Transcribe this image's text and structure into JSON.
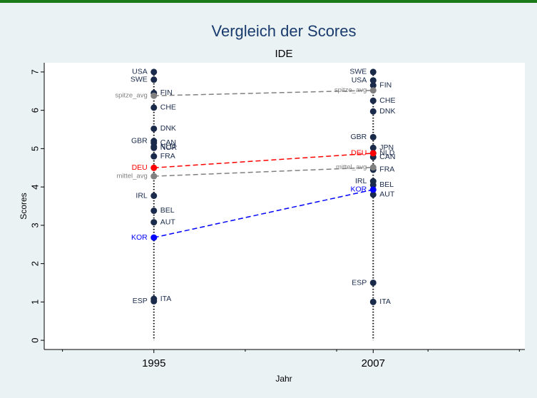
{
  "chart_data": {
    "type": "dot_comparison",
    "title": "Vergleich der Scores",
    "subtitle": "IDE",
    "x_label": "Jahr",
    "y_label": "Scores",
    "x": [
      1995,
      2007
    ],
    "xlim": [
      1989,
      2015.3
    ],
    "xticks": [
      1995,
      2007
    ],
    "xminorticks": [
      1990,
      2000,
      2005,
      2010,
      2015
    ],
    "ylim": [
      -0.24,
      7.24
    ],
    "yticks": [
      0,
      1,
      2,
      3,
      4,
      5,
      6,
      7
    ],
    "grid": false,
    "series": [
      {
        "name": "USA",
        "color": "#1a2a4a",
        "values": [
          7.0,
          6.78
        ],
        "label_positions": [
          "left",
          "left"
        ],
        "connect": false
      },
      {
        "name": "SWE",
        "color": "#1a2a4a",
        "values": [
          6.8,
          7.0
        ],
        "label_positions": [
          "left",
          "left"
        ],
        "connect": false
      },
      {
        "name": "FIN",
        "color": "#1a2a4a",
        "values": [
          6.45,
          6.65
        ],
        "label_positions": [
          "right",
          "right"
        ],
        "connect": false
      },
      {
        "name": "spitze_avg",
        "color": "#808080",
        "values": [
          6.38,
          6.52
        ],
        "label_positions": [
          "left",
          "left"
        ],
        "connect": true
      },
      {
        "name": "CHE",
        "color": "#1a2a4a",
        "values": [
          6.07,
          6.25
        ],
        "label_positions": [
          "right",
          "right"
        ],
        "connect": false
      },
      {
        "name": "DNK",
        "color": "#1a2a4a",
        "values": [
          5.52,
          5.97
        ],
        "label_positions": [
          "right",
          "right"
        ],
        "connect": false
      },
      {
        "name": "GBR",
        "color": "#1a2a4a",
        "values": [
          5.2,
          5.3
        ],
        "label_positions": [
          "left",
          "left"
        ],
        "connect": false
      },
      {
        "name": "CAN",
        "color": "#1a2a4a",
        "values": [
          5.15,
          4.78
        ],
        "label_positions": [
          "right",
          "right"
        ],
        "connect": false
      },
      {
        "name": "JPN",
        "color": "#1a2a4a",
        "values": [
          null,
          5.02
        ],
        "label_positions": [
          "right",
          "right"
        ],
        "connect": false
      },
      {
        "name": "NLD",
        "color": "#1a2a4a",
        "values": [
          5.05,
          4.88
        ],
        "label_positions": [
          "right",
          "right"
        ],
        "connect": false
      },
      {
        "name": "NOR",
        "color": "#1a2a4a",
        "values": [
          5.02,
          null
        ],
        "label_positions": [
          "right",
          "right"
        ],
        "connect": false
      },
      {
        "name": "FRA",
        "color": "#1a2a4a",
        "values": [
          4.8,
          4.45
        ],
        "label_positions": [
          "right",
          "right"
        ],
        "connect": false
      },
      {
        "name": "DEU",
        "color": "#ff0000",
        "values": [
          4.5,
          4.88
        ],
        "label_positions": [
          "left",
          "left"
        ],
        "connect": true
      },
      {
        "name": "mittel_avg",
        "color": "#808080",
        "values": [
          4.28,
          4.51
        ],
        "label_positions": [
          "left",
          "left"
        ],
        "connect": true
      },
      {
        "name": "IRL",
        "color": "#1a2a4a",
        "values": [
          3.77,
          4.15
        ],
        "label_positions": [
          "left",
          "left"
        ],
        "connect": false
      },
      {
        "name": "BEL",
        "color": "#1a2a4a",
        "values": [
          3.38,
          4.05
        ],
        "label_positions": [
          "right",
          "right"
        ],
        "connect": false
      },
      {
        "name": "AUT",
        "color": "#1a2a4a",
        "values": [
          3.08,
          3.8
        ],
        "label_positions": [
          "right",
          "right"
        ],
        "connect": false
      },
      {
        "name": "KOR",
        "color": "#0000ff",
        "values": [
          2.68,
          3.93
        ],
        "label_positions": [
          "left",
          "left"
        ],
        "connect": true
      },
      {
        "name": "ESP",
        "color": "#1a2a4a",
        "values": [
          1.02,
          1.5
        ],
        "label_positions": [
          "left",
          "left"
        ],
        "connect": false
      },
      {
        "name": "ITA",
        "color": "#1a2a4a",
        "values": [
          1.08,
          1.0
        ],
        "label_positions": [
          "right",
          "right"
        ],
        "connect": false
      }
    ]
  }
}
